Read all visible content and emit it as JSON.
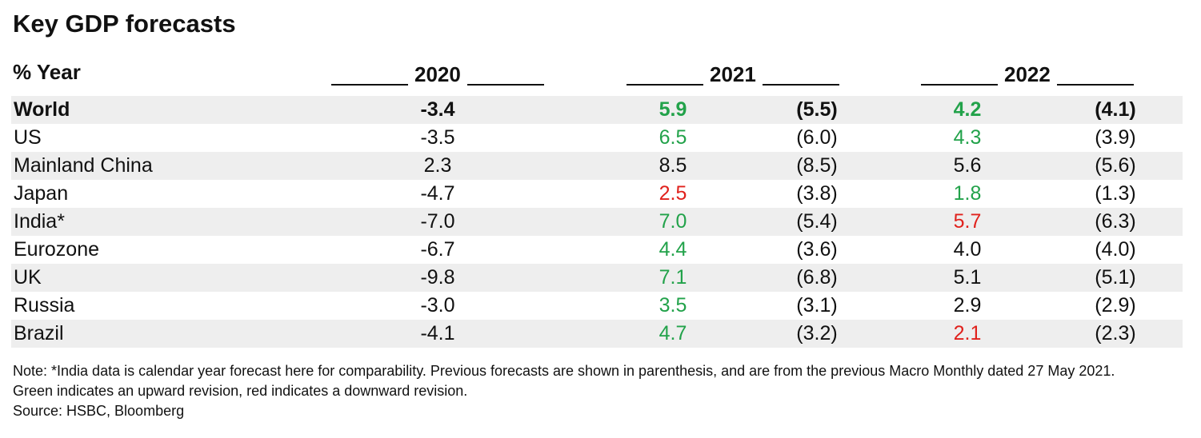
{
  "title": "Key GDP forecasts",
  "header": {
    "label": "% Year",
    "years": [
      "2020",
      "2021",
      "2022"
    ]
  },
  "colors": {
    "up": "#22a24a",
    "down": "#e0211c",
    "neutral": "#111111",
    "shade": "#eeeeee"
  },
  "chart_data": {
    "type": "table",
    "title": "Key GDP forecasts",
    "columns": [
      "% Year",
      "2020",
      "2021",
      "2021 previous",
      "2022",
      "2022 previous"
    ],
    "rows": [
      {
        "country": "World",
        "v2020": "-3.4",
        "v2021": "5.9",
        "p2021": "(5.5)",
        "v2022": "4.2",
        "p2022": "(4.1)",
        "r2021": "up",
        "r2022": "up",
        "bold": true
      },
      {
        "country": "US",
        "v2020": "-3.5",
        "v2021": "6.5",
        "p2021": "(6.0)",
        "v2022": "4.3",
        "p2022": "(3.9)",
        "r2021": "up",
        "r2022": "up"
      },
      {
        "country": "Mainland China",
        "v2020": "2.3",
        "v2021": "8.5",
        "p2021": "(8.5)",
        "v2022": "5.6",
        "p2022": "(5.6)",
        "r2021": "neutral",
        "r2022": "neutral"
      },
      {
        "country": "Japan",
        "v2020": "-4.7",
        "v2021": "2.5",
        "p2021": "(3.8)",
        "v2022": "1.8",
        "p2022": "(1.3)",
        "r2021": "down",
        "r2022": "up"
      },
      {
        "country": "India*",
        "v2020": "-7.0",
        "v2021": "7.0",
        "p2021": "(5.4)",
        "v2022": "5.7",
        "p2022": "(6.3)",
        "r2021": "up",
        "r2022": "down"
      },
      {
        "country": "Eurozone",
        "v2020": "-6.7",
        "v2021": "4.4",
        "p2021": "(3.6)",
        "v2022": "4.0",
        "p2022": "(4.0)",
        "r2021": "up",
        "r2022": "neutral"
      },
      {
        "country": "UK",
        "v2020": "-9.8",
        "v2021": "7.1",
        "p2021": "(6.8)",
        "v2022": "5.1",
        "p2022": "(5.1)",
        "r2021": "up",
        "r2022": "neutral"
      },
      {
        "country": "Russia",
        "v2020": "-3.0",
        "v2021": "3.5",
        "p2021": "(3.1)",
        "v2022": "2.9",
        "p2022": "(2.9)",
        "r2021": "up",
        "r2022": "neutral"
      },
      {
        "country": "Brazil",
        "v2020": "-4.1",
        "v2021": "4.7",
        "p2021": "(3.2)",
        "v2022": "2.1",
        "p2022": "(2.3)",
        "r2021": "up",
        "r2022": "down"
      }
    ]
  },
  "notes": {
    "line1": "Note: *India data is calendar year forecast here for comparability. Previous forecasts are shown in parenthesis, and are from the previous Macro Monthly dated 27 May 2021.",
    "line2": "Green indicates an upward revision, red indicates a downward revision.",
    "source": "Source: HSBC, Bloomberg"
  }
}
